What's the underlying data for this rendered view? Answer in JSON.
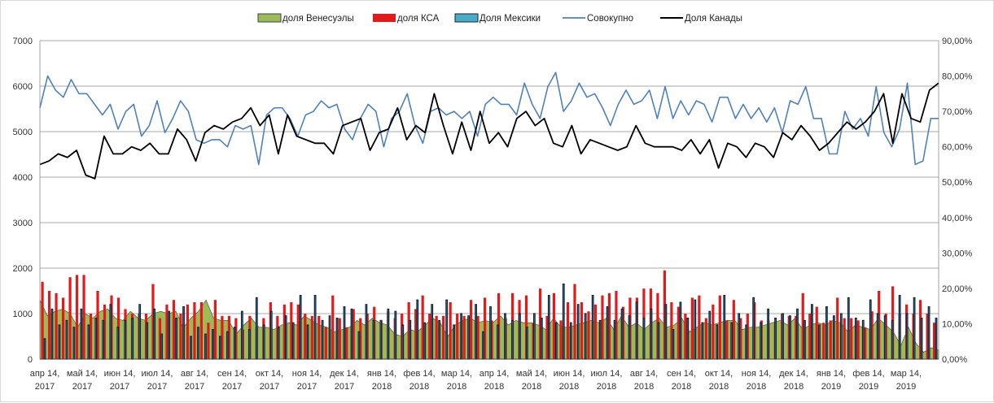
{
  "chart_data": {
    "type": "bar",
    "title": "",
    "legend": [
      {
        "name": "доля Венесуэлы",
        "kind": "area",
        "color": "#9bbb59"
      },
      {
        "name": "доля КСА",
        "kind": "bar",
        "color": "#e41a1a"
      },
      {
        "name": "Доля Мексики",
        "kind": "bar",
        "color": "#4bacc6"
      },
      {
        "name": "Совокупно",
        "kind": "line",
        "color": "#4f81bd"
      },
      {
        "name": "Доля Канады",
        "kind": "line",
        "color": "#000000"
      }
    ],
    "legend_position": "top",
    "y_left": {
      "min": 0,
      "max": 7000,
      "step": 1000,
      "ticks": [
        "0",
        "1000",
        "2000",
        "3000",
        "4000",
        "5000",
        "6000",
        "7000"
      ]
    },
    "y_right": {
      "min": 0,
      "max": 90,
      "step": 10,
      "ticks": [
        "0,00%",
        "10,00%",
        "20,00%",
        "30,00%",
        "40,00%",
        "50,00%",
        "60,00%",
        "70,00%",
        "80,00%",
        "90,00%"
      ]
    },
    "x_labels": [
      [
        "апр 14,",
        "2017"
      ],
      [
        "май 14,",
        "2017"
      ],
      [
        "июн 14,",
        "2017"
      ],
      [
        "июл 14,",
        "2017"
      ],
      [
        "авг 14,",
        "2017"
      ],
      [
        "сен 14,",
        "2017"
      ],
      [
        "окт 14,",
        "2017"
      ],
      [
        "ноя 14,",
        "2017"
      ],
      [
        "дек 14,",
        "2017"
      ],
      [
        "янв 14,",
        "2018"
      ],
      [
        "фев 14,",
        "2018"
      ],
      [
        "мар 14,",
        "2018"
      ],
      [
        "апр 14,",
        "2018"
      ],
      [
        "май 14,",
        "2018"
      ],
      [
        "июн 14,",
        "2018"
      ],
      [
        "июл 14,",
        "2018"
      ],
      [
        "авг 14,",
        "2018"
      ],
      [
        "сен 14,",
        "2018"
      ],
      [
        "окт 14,",
        "2018"
      ],
      [
        "ноя 14,",
        "2018"
      ],
      [
        "дек 14,",
        "2018"
      ],
      [
        "янв 14,",
        "2019"
      ],
      [
        "фев 14,",
        "2019"
      ],
      [
        "мар 14,",
        "2019"
      ]
    ],
    "grid": true,
    "series": [
      {
        "name": "доля Венесуэлы",
        "axis": "left",
        "type": "area",
        "values": [
          1300,
          950,
          1050,
          1100,
          1000,
          700,
          1000,
          900,
          1050,
          1100,
          900,
          850,
          1050,
          900,
          850,
          1000,
          1050,
          1000,
          1050,
          700,
          900,
          1050,
          1300,
          900,
          850,
          850,
          550,
          750,
          900,
          700,
          700,
          650,
          750,
          800,
          750,
          950,
          850,
          750,
          700,
          600,
          650,
          700,
          850,
          750,
          900,
          800,
          750,
          550,
          500,
          650,
          600,
          750,
          900,
          800,
          500,
          750,
          850,
          900,
          800,
          850,
          800,
          950,
          750,
          850,
          800,
          800,
          750,
          650,
          900,
          700,
          700,
          750,
          800,
          850,
          800,
          900,
          650,
          950,
          700,
          800,
          650,
          800,
          900,
          700,
          750,
          900,
          600,
          700,
          800,
          750,
          800,
          850,
          850,
          650,
          700,
          700,
          750,
          800,
          850,
          750,
          900,
          650,
          750,
          800,
          750,
          850,
          800,
          600,
          750,
          700,
          650,
          900,
          750,
          600,
          300,
          700,
          350,
          150,
          250,
          200
        ]
      },
      {
        "name": "доля КСА",
        "axis": "left",
        "type": "bar",
        "values": [
          1700,
          1500,
          1450,
          1350,
          1800,
          1850,
          1850,
          1000,
          1500,
          1200,
          1400,
          1350,
          1100,
          1000,
          1000,
          1000,
          1650,
          900,
          1200,
          1300,
          1000,
          1200,
          1250,
          1250,
          800,
          1300,
          950,
          950,
          900,
          650,
          950,
          700,
          900,
          1250,
          950,
          1200,
          1250,
          1200,
          1000,
          950,
          950,
          700,
          1400,
          900,
          700,
          1100,
          900,
          1000,
          1150,
          850,
          1050,
          900,
          1000,
          1250,
          1100,
          1400,
          1000,
          950,
          950,
          1250,
          1000,
          950,
          1300,
          950,
          1350,
          850,
          1450,
          900,
          1450,
          1300,
          1400,
          800,
          1550,
          950,
          1450,
          850,
          1250,
          1650,
          1250,
          1050,
          1200,
          1400,
          1450,
          1500,
          1150,
          1350,
          1350,
          1550,
          1550,
          1450,
          1950,
          1250,
          1150,
          1000,
          1350,
          1400,
          900,
          1200,
          1400,
          850,
          1300,
          900,
          1000,
          1250,
          850,
          850,
          800,
          1000,
          950,
          950,
          1450,
          1000,
          1150,
          800,
          850,
          1350,
          900,
          900,
          850,
          700,
          1050,
          1500,
          1000,
          1600,
          1000,
          1200,
          1000,
          1300,
          1000,
          800
        ]
      },
      {
        "name": "Доля Мексики",
        "axis": "left",
        "type": "bar",
        "values": [
          450,
          1100,
          750,
          850,
          700,
          1100,
          750,
          900,
          850,
          1200,
          700,
          850,
          900,
          1200,
          800,
          1100,
          550,
          1050,
          900,
          1150,
          500,
          700,
          550,
          650,
          500,
          600,
          700,
          1050,
          650,
          1350,
          750,
          1050,
          700,
          950,
          800,
          1400,
          750,
          1400,
          850,
          950,
          900,
          1150,
          1100,
          600,
          1200,
          850,
          850,
          1100,
          1050,
          750,
          850,
          1300,
          800,
          1200,
          850,
          1300,
          750,
          1000,
          950,
          1200,
          600,
          1150,
          750,
          1000,
          850,
          1000,
          700,
          1000,
          900,
          1400,
          800,
          1650,
          800,
          1200,
          1000,
          1400,
          850,
          1150,
          850,
          1100,
          950,
          1250,
          900,
          1100,
          800,
          1200,
          650,
          1250,
          900,
          1300,
          800,
          1050,
          750,
          1400,
          800,
          1000,
          750,
          1350,
          800,
          1100,
          900,
          1000,
          950,
          1100,
          850,
          1200,
          750,
          1150,
          950,
          1000,
          1350,
          900,
          850,
          1300,
          1000,
          950,
          850,
          1400,
          1000,
          1350,
          900,
          1150,
          900
        ]
      },
      {
        "name": "Совокупно",
        "axis": "right",
        "type": "line",
        "values": [
          71,
          80,
          76,
          74,
          79,
          75,
          75,
          72,
          69,
          72,
          65,
          70,
          72,
          63,
          66,
          73,
          64,
          68,
          73,
          70,
          62,
          61,
          62,
          62,
          60,
          66,
          65,
          66,
          55,
          69,
          71,
          71,
          68,
          63,
          69,
          70,
          73,
          71,
          72,
          65,
          62,
          68,
          72,
          70,
          60,
          68,
          70,
          75,
          66,
          61,
          70,
          71,
          69,
          70,
          68,
          70,
          63,
          72,
          74,
          72,
          72,
          69,
          78,
          72,
          68,
          77,
          81,
          70,
          73,
          78,
          74,
          75,
          71,
          66,
          72,
          76,
          72,
          73,
          76,
          68,
          77,
          68,
          73,
          69,
          73,
          72,
          67,
          74,
          74,
          68,
          72,
          68,
          71,
          67,
          71,
          64,
          73,
          72,
          77,
          68,
          68,
          58,
          58,
          70,
          65,
          68,
          63,
          77,
          64,
          60,
          65,
          78,
          55,
          56,
          68,
          68
        ]
      },
      {
        "name": "Доля Канады",
        "axis": "right",
        "type": "line",
        "values": [
          55,
          56,
          58,
          57,
          59,
          52,
          51,
          63,
          58,
          58,
          60,
          59,
          61,
          58,
          58,
          65,
          62,
          56,
          64,
          66,
          65,
          67,
          68,
          71,
          66,
          69,
          58,
          69,
          63,
          62,
          61,
          61,
          58,
          66,
          67,
          68,
          59,
          64,
          65,
          71,
          62,
          66,
          64,
          75,
          66,
          58,
          67,
          59,
          70,
          61,
          64,
          60,
          68,
          70,
          66,
          68,
          61,
          60,
          66,
          58,
          62,
          61,
          60,
          59,
          60,
          66,
          61,
          60,
          60,
          60,
          59,
          62,
          58,
          62,
          54,
          61,
          60,
          57,
          61,
          60,
          57,
          64,
          62,
          66,
          63,
          59,
          61,
          64,
          67,
          65,
          67,
          70,
          75,
          61,
          75,
          68,
          67,
          76,
          78
        ]
      }
    ]
  }
}
